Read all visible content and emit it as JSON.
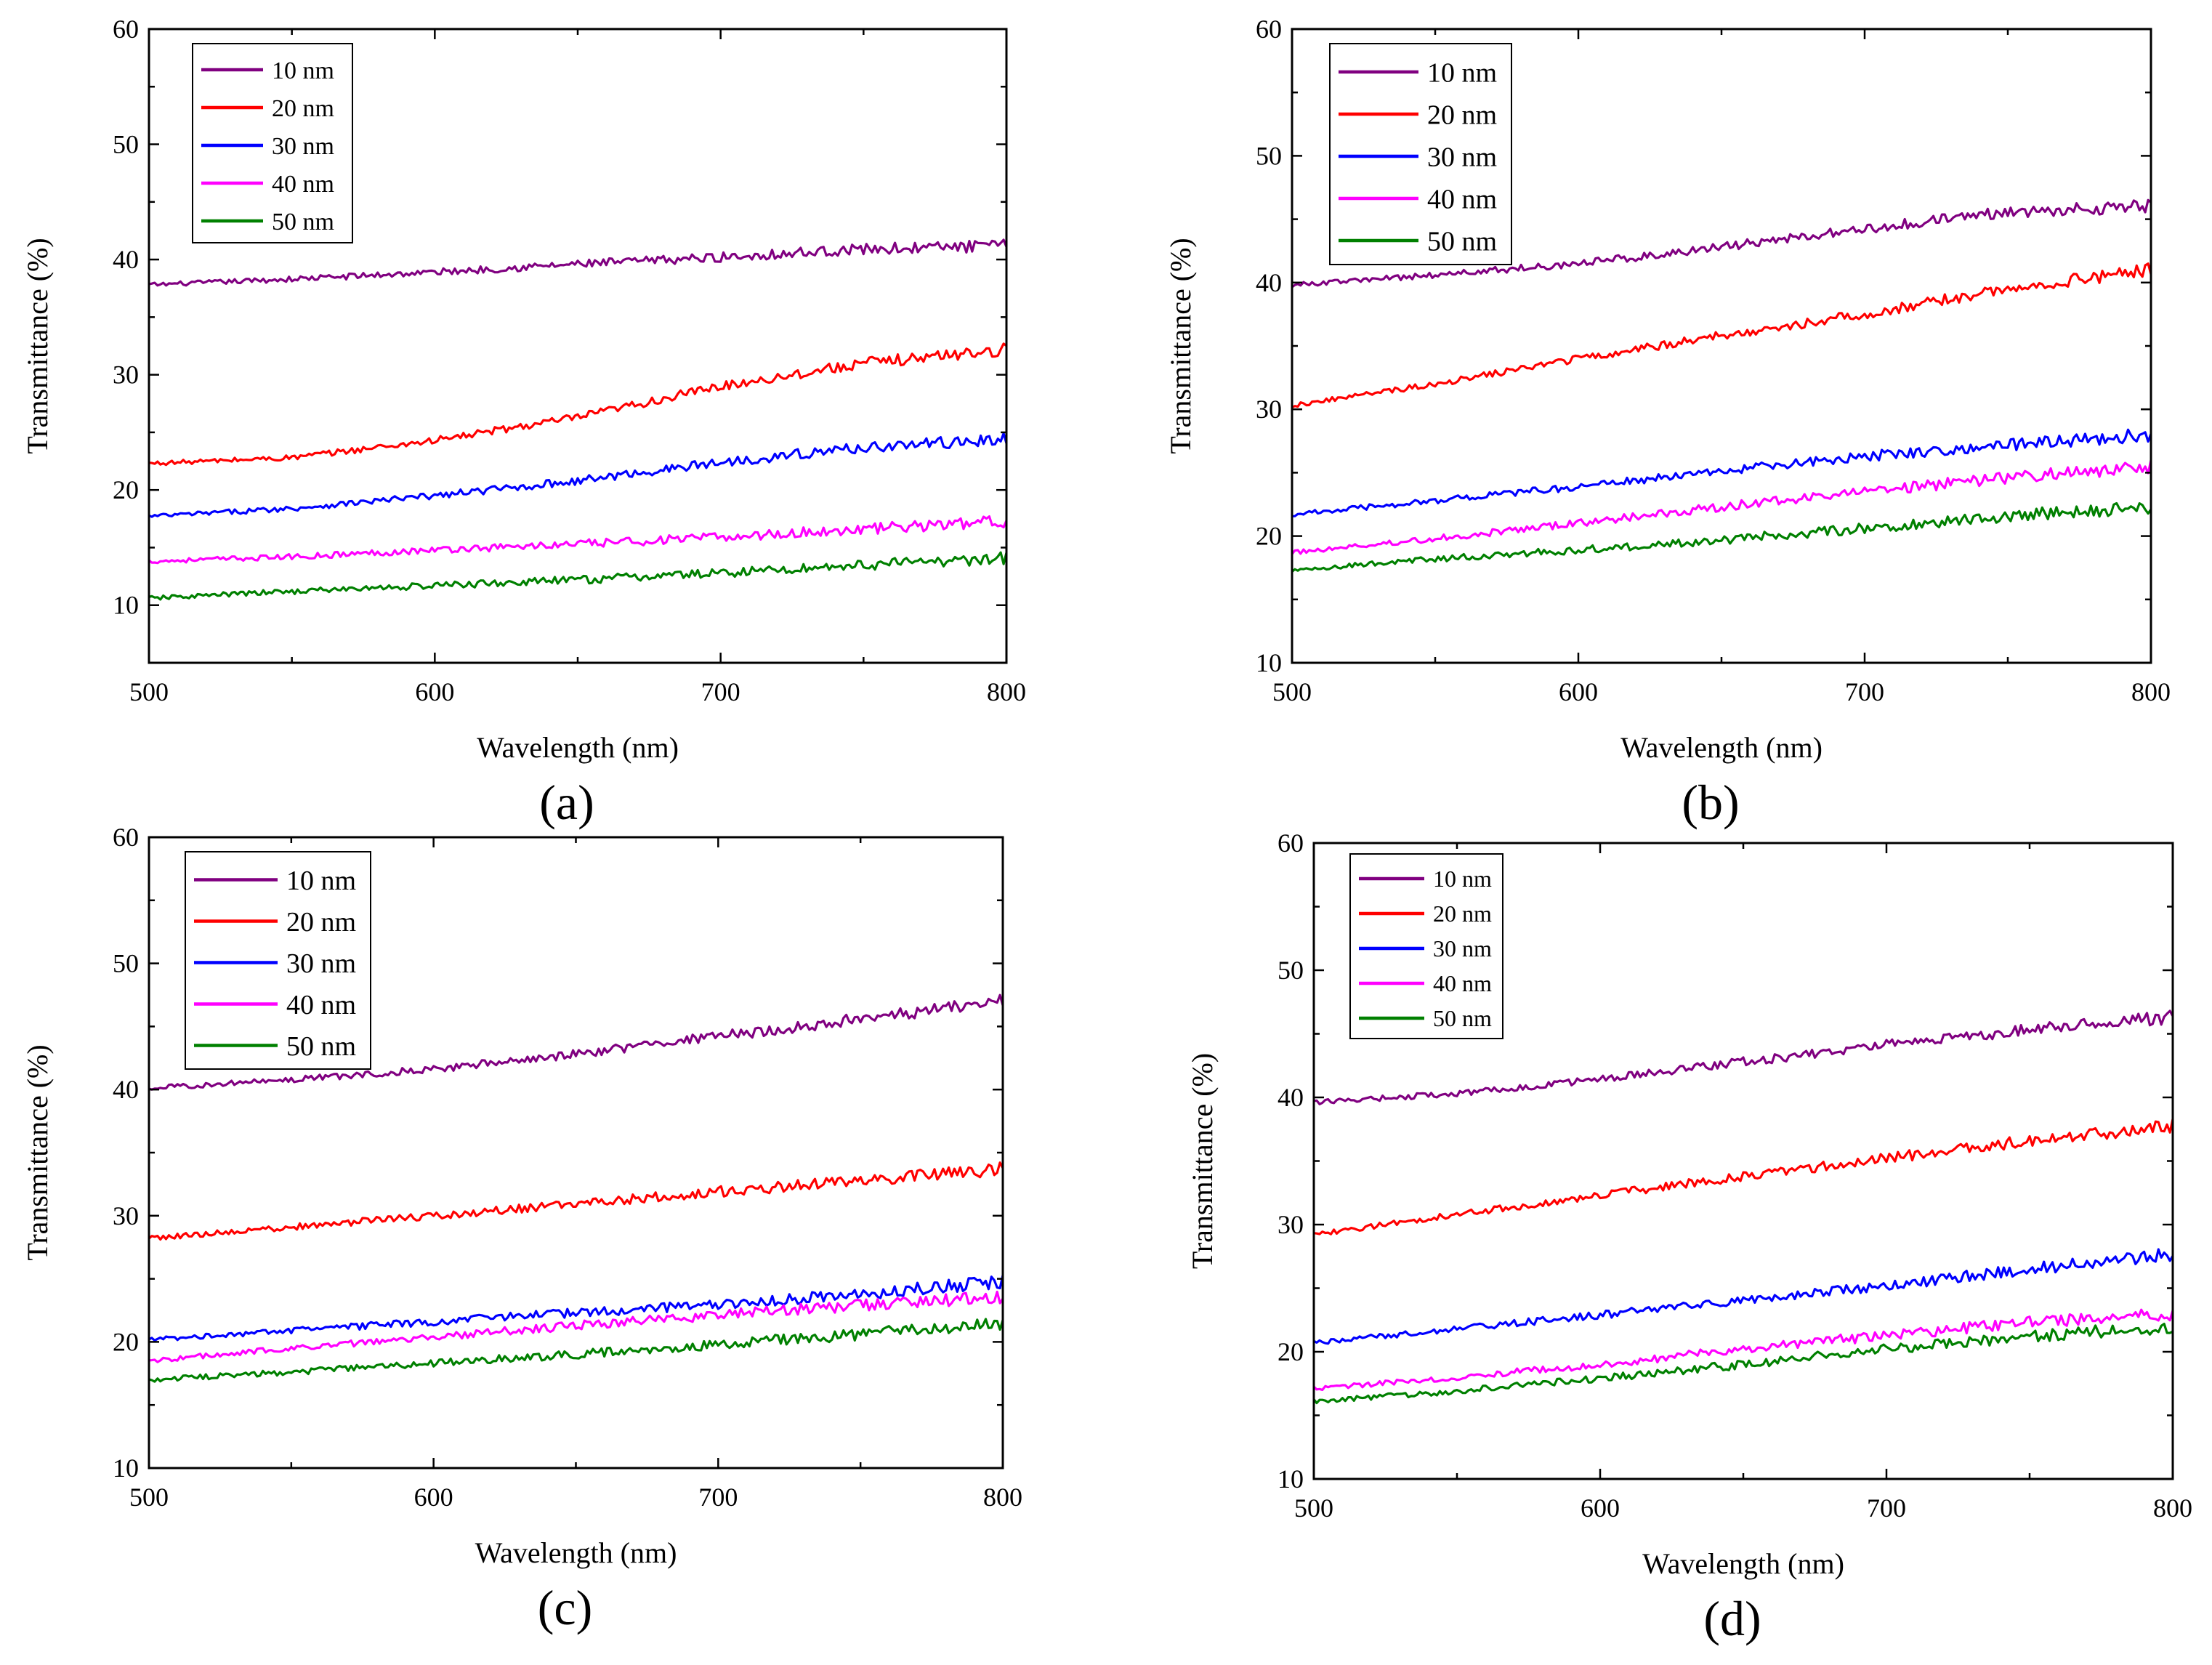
{
  "figure": {
    "panel_count": 4
  },
  "chart_data": [
    {
      "type": "line",
      "panel_label": "(a)",
      "xlabel": "Wavelength (nm)",
      "ylabel": "Transmittance (%)",
      "xlim": [
        500,
        800
      ],
      "ylim": [
        5,
        60
      ],
      "xticks": [
        500,
        600,
        700,
        800
      ],
      "yticks": [
        10,
        20,
        30,
        40,
        50,
        60
      ],
      "legend_position": "top-left",
      "series": [
        {
          "name": "10 nm",
          "color": "#800080",
          "x": [
            500,
            550,
            600,
            650,
            700,
            750,
            800
          ],
          "values": [
            37.8,
            38.3,
            38.9,
            39.6,
            40.2,
            40.9,
            41.2
          ]
        },
        {
          "name": "20 nm",
          "color": "#ff0000",
          "x": [
            500,
            550,
            600,
            650,
            700,
            750,
            800
          ],
          "values": [
            22.3,
            22.8,
            24.3,
            26.3,
            29.0,
            31.0,
            32.2
          ]
        },
        {
          "name": "30 nm",
          "color": "#0000ff",
          "x": [
            500,
            550,
            600,
            650,
            700,
            750,
            800
          ],
          "values": [
            17.7,
            18.4,
            19.5,
            20.8,
            22.4,
            23.7,
            24.4
          ]
        },
        {
          "name": "40 nm",
          "color": "#ff00ff",
          "x": [
            500,
            550,
            600,
            650,
            700,
            750,
            800
          ],
          "values": [
            13.8,
            14.2,
            14.8,
            15.3,
            15.9,
            16.6,
            17.3
          ]
        },
        {
          "name": "50 nm",
          "color": "#008000",
          "x": [
            500,
            550,
            600,
            650,
            700,
            750,
            800
          ],
          "values": [
            10.6,
            11.2,
            11.7,
            12.2,
            12.8,
            13.5,
            14.1
          ]
        }
      ]
    },
    {
      "type": "line",
      "panel_label": "(b)",
      "xlabel": "Wavelength (nm)",
      "ylabel": "Transmittance (%)",
      "xlim": [
        500,
        800
      ],
      "ylim": [
        10,
        60
      ],
      "xticks": [
        500,
        600,
        700,
        800
      ],
      "yticks": [
        10,
        20,
        30,
        40,
        50,
        60
      ],
      "legend_position": "top-left",
      "series": [
        {
          "name": "10 nm",
          "color": "#800080",
          "x": [
            500,
            550,
            600,
            650,
            700,
            750,
            800
          ],
          "values": [
            39.8,
            40.6,
            41.5,
            42.8,
            44.2,
            45.6,
            46.0
          ]
        },
        {
          "name": "20 nm",
          "color": "#ff0000",
          "x": [
            500,
            550,
            600,
            650,
            700,
            750,
            800
          ],
          "values": [
            30.3,
            32.0,
            34.0,
            35.8,
            37.5,
            39.5,
            41.0
          ]
        },
        {
          "name": "30 nm",
          "color": "#0000ff",
          "x": [
            500,
            550,
            600,
            650,
            700,
            750,
            800
          ],
          "values": [
            21.7,
            22.8,
            23.9,
            25.1,
            26.3,
            27.2,
            28.0
          ]
        },
        {
          "name": "40 nm",
          "color": "#ff00ff",
          "x": [
            500,
            550,
            600,
            650,
            700,
            750,
            800
          ],
          "values": [
            18.7,
            19.8,
            21.0,
            22.3,
            23.5,
            24.6,
            25.5
          ]
        },
        {
          "name": "50 nm",
          "color": "#008000",
          "x": [
            500,
            550,
            600,
            650,
            700,
            750,
            800
          ],
          "values": [
            17.3,
            18.2,
            18.9,
            19.7,
            20.6,
            21.6,
            22.3
          ]
        }
      ]
    },
    {
      "type": "line",
      "panel_label": "(c)",
      "xlabel": "Wavelength (nm)",
      "ylabel": "Transmittance (%)",
      "xlim": [
        500,
        800
      ],
      "ylim": [
        10,
        60
      ],
      "xticks": [
        500,
        600,
        700,
        800
      ],
      "yticks": [
        10,
        20,
        30,
        40,
        50,
        60
      ],
      "legend_position": "top-left",
      "series": [
        {
          "name": "10 nm",
          "color": "#800080",
          "x": [
            500,
            550,
            600,
            650,
            700,
            750,
            800
          ],
          "values": [
            40.1,
            40.8,
            41.6,
            42.8,
            44.2,
            45.6,
            47.0
          ]
        },
        {
          "name": "20 nm",
          "color": "#ff0000",
          "x": [
            500,
            550,
            600,
            650,
            700,
            750,
            800
          ],
          "values": [
            28.2,
            29.1,
            30.0,
            30.9,
            31.9,
            32.8,
            33.7
          ]
        },
        {
          "name": "30 nm",
          "color": "#0000ff",
          "x": [
            500,
            550,
            600,
            650,
            700,
            750,
            800
          ],
          "values": [
            20.2,
            20.9,
            21.6,
            22.3,
            23.0,
            23.8,
            24.8
          ]
        },
        {
          "name": "40 nm",
          "color": "#ff00ff",
          "x": [
            500,
            550,
            600,
            650,
            700,
            750,
            800
          ],
          "values": [
            18.5,
            19.5,
            20.4,
            21.3,
            22.1,
            22.9,
            23.6
          ]
        },
        {
          "name": "50 nm",
          "color": "#008000",
          "x": [
            500,
            550,
            600,
            650,
            700,
            750,
            800
          ],
          "values": [
            17.0,
            17.6,
            18.3,
            19.0,
            19.8,
            20.6,
            21.5
          ]
        }
      ]
    },
    {
      "type": "line",
      "panel_label": "(d)",
      "xlabel": "Wavelength (nm)",
      "ylabel": "Transmittance (%)",
      "xlim": [
        500,
        800
      ],
      "ylim": [
        10,
        60
      ],
      "xticks": [
        500,
        600,
        700,
        800
      ],
      "yticks": [
        10,
        20,
        30,
        40,
        50,
        60
      ],
      "legend_position": "top-left",
      "series": [
        {
          "name": "10 nm",
          "color": "#800080",
          "x": [
            500,
            550,
            600,
            650,
            700,
            750,
            800
          ],
          "values": [
            39.6,
            40.3,
            41.4,
            42.8,
            44.1,
            45.3,
            46.3
          ]
        },
        {
          "name": "20 nm",
          "color": "#ff0000",
          "x": [
            500,
            550,
            600,
            650,
            700,
            750,
            800
          ],
          "values": [
            29.2,
            30.8,
            32.3,
            33.8,
            35.2,
            36.6,
            37.8
          ]
        },
        {
          "name": "30 nm",
          "color": "#0000ff",
          "x": [
            500,
            550,
            600,
            650,
            700,
            750,
            800
          ],
          "values": [
            20.7,
            21.8,
            22.9,
            24.0,
            25.2,
            26.5,
            27.7
          ]
        },
        {
          "name": "40 nm",
          "color": "#ff00ff",
          "x": [
            500,
            550,
            600,
            650,
            700,
            750,
            800
          ],
          "values": [
            17.1,
            18.0,
            19.0,
            20.2,
            21.3,
            22.3,
            23.0
          ]
        },
        {
          "name": "50 nm",
          "color": "#008000",
          "x": [
            500,
            550,
            600,
            650,
            700,
            750,
            800
          ],
          "values": [
            16.1,
            16.9,
            17.9,
            19.0,
            20.2,
            21.2,
            22.0
          ]
        }
      ]
    }
  ]
}
